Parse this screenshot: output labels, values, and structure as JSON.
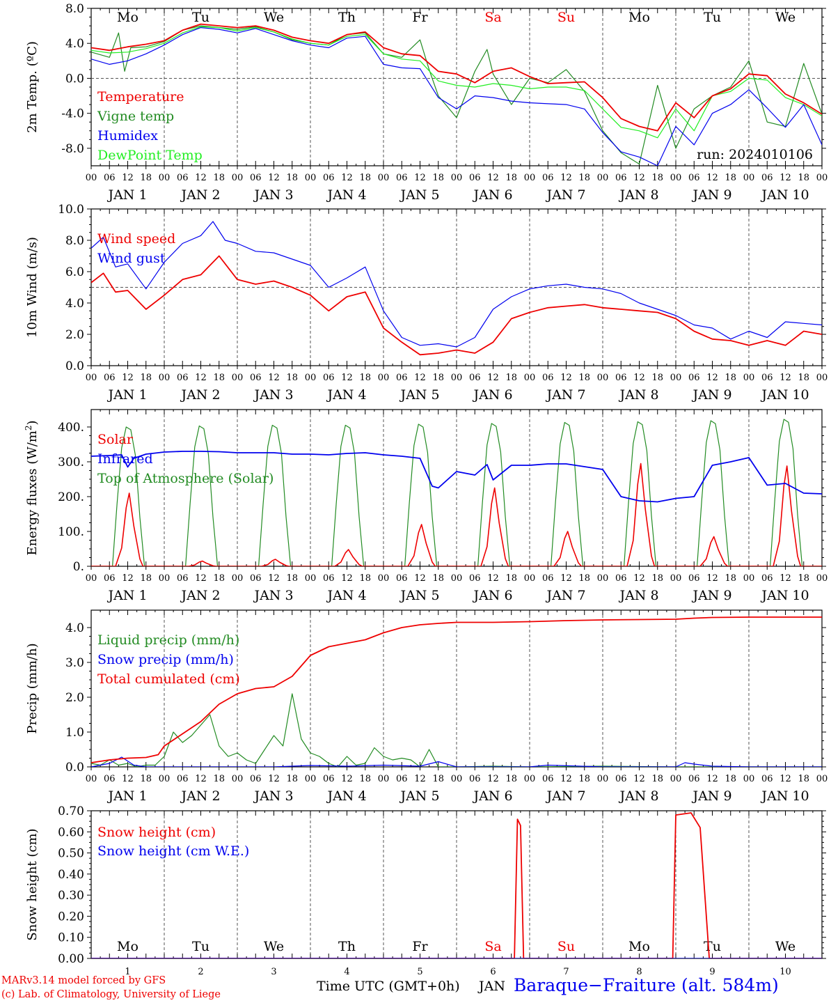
{
  "meta": {
    "run": "run: 2024010106",
    "station": "Baraque−Fraiture (alt. 584m)",
    "credit_line1": "MARv3.14 model forced by GFS",
    "credit_line2": "(c) Lab. of Climatology, University of Liege",
    "time_label": "Time UTC (GMT+0h)",
    "month_label": "JAN"
  },
  "colors": {
    "red": "#ee0000",
    "green": "#228b22",
    "blue": "#0000ee",
    "lightgreen": "#22ee22",
    "weekend": "#ee0000",
    "axis": "#000000"
  },
  "days": {
    "weekdays": [
      "Mo",
      "Tu",
      "We",
      "Th",
      "Fr",
      "Sa",
      "Su",
      "Mo",
      "Tu",
      "We"
    ],
    "weekend_index": [
      5,
      6
    ],
    "dates": [
      "JAN 1",
      "JAN 2",
      "JAN 3",
      "JAN 4",
      "JAN 5",
      "JAN 6",
      "JAN 7",
      "JAN 8",
      "JAN 9",
      "JAN 10"
    ],
    "date_numbers": [
      "1",
      "2",
      "3",
      "4",
      "5",
      "6",
      "7",
      "8",
      "9",
      "10"
    ],
    "hour_ticks": [
      "00",
      "06",
      "12",
      "18"
    ],
    "end_tick": "00"
  },
  "chart_data": [
    {
      "type": "line",
      "ylabel": "2m Temp. (ºC)",
      "ylim": [
        -10,
        8
      ],
      "yticks": [
        -8,
        -4,
        0,
        4,
        8
      ],
      "ytick_labels": [
        "-8.0",
        "-4.0",
        "0.0",
        "4.0",
        "8.0"
      ],
      "ref_line": 0,
      "x_unit": "hours since Jan 1 00 UTC",
      "series": [
        {
          "name": "Temperature",
          "color": "red",
          "x": [
            0,
            6,
            12,
            18,
            24,
            30,
            36,
            42,
            48,
            54,
            60,
            66,
            72,
            78,
            84,
            90,
            96,
            102,
            108,
            114,
            120,
            126,
            132,
            138,
            144,
            150,
            156,
            162,
            168,
            174,
            180,
            186,
            192,
            198,
            204,
            210,
            216,
            222,
            228,
            234,
            240
          ],
          "values": [
            3.5,
            3.2,
            3.6,
            3.9,
            4.3,
            5.5,
            6.2,
            6.0,
            5.8,
            6.0,
            5.5,
            4.7,
            4.3,
            4.0,
            5.0,
            5.3,
            3.5,
            2.8,
            2.6,
            0.8,
            0.5,
            -0.5,
            0.8,
            1.2,
            0.2,
            -0.6,
            -0.5,
            -0.4,
            -2.2,
            -4.6,
            -5.5,
            -6.0,
            -2.8,
            -4.5,
            -2.0,
            -1.2,
            0.5,
            0.3,
            -1.8,
            -2.8,
            -4.1
          ]
        },
        {
          "name": "Vigne temp",
          "color": "green",
          "x": [
            0,
            6,
            9,
            11,
            13,
            18,
            24,
            30,
            36,
            42,
            48,
            54,
            60,
            66,
            72,
            78,
            84,
            90,
            96,
            102,
            108,
            111,
            114,
            120,
            126,
            130,
            132,
            138,
            144,
            150,
            156,
            162,
            168,
            174,
            180,
            186,
            192,
            198,
            204,
            210,
            216,
            222,
            228,
            234,
            240
          ],
          "values": [
            3.0,
            2.4,
            5.2,
            0.8,
            3.5,
            3.6,
            4.2,
            5.5,
            6.0,
            5.8,
            5.6,
            5.9,
            5.3,
            4.4,
            4.0,
            3.8,
            5.0,
            5.2,
            2.8,
            2.4,
            4.4,
            1.0,
            -2.0,
            -4.5,
            0.8,
            3.3,
            0.5,
            -3.0,
            0.0,
            -0.5,
            1.0,
            -1.5,
            -6.0,
            -8.5,
            -9.8,
            -0.8,
            -8.0,
            -3.5,
            -2.0,
            -1.0,
            2.0,
            -5.0,
            -5.5,
            1.7,
            -4.1
          ]
        },
        {
          "name": "Humidex",
          "color": "blue",
          "x": [
            0,
            6,
            12,
            18,
            24,
            30,
            36,
            42,
            48,
            54,
            60,
            66,
            72,
            78,
            84,
            90,
            96,
            102,
            108,
            114,
            120,
            126,
            132,
            138,
            144,
            150,
            156,
            162,
            168,
            174,
            180,
            186,
            192,
            198,
            204,
            210,
            216,
            222,
            228,
            234,
            240
          ],
          "values": [
            2.2,
            1.6,
            2.0,
            2.8,
            3.8,
            5.0,
            5.8,
            5.6,
            5.2,
            5.7,
            5.0,
            4.3,
            3.8,
            3.5,
            4.6,
            4.8,
            1.6,
            1.2,
            1.1,
            -2.2,
            -3.5,
            -2.0,
            -2.2,
            -2.6,
            -2.8,
            -2.9,
            -3.0,
            -3.5,
            -6.2,
            -8.4,
            -9.0,
            -10.0,
            -5.5,
            -7.6,
            -4.0,
            -3.0,
            -1.3,
            -3.4,
            -5.6,
            -3.0,
            -7.6
          ]
        },
        {
          "name": "DewPoint Temp",
          "color": "lightgreen",
          "x": [
            0,
            6,
            12,
            18,
            24,
            30,
            36,
            42,
            48,
            54,
            60,
            66,
            72,
            78,
            84,
            90,
            96,
            102,
            108,
            114,
            120,
            126,
            132,
            138,
            144,
            150,
            156,
            162,
            168,
            174,
            180,
            186,
            192,
            198,
            204,
            210,
            216,
            222,
            228,
            234,
            240
          ],
          "values": [
            3.2,
            2.9,
            3.0,
            3.4,
            4.0,
            5.2,
            5.9,
            5.8,
            5.4,
            5.8,
            5.3,
            4.5,
            4.0,
            3.8,
            4.8,
            5.0,
            2.8,
            2.2,
            2.0,
            -0.3,
            -0.8,
            -1.0,
            -0.6,
            -0.8,
            -1.2,
            -1.0,
            -1.0,
            -1.4,
            -3.5,
            -5.6,
            -6.0,
            -6.8,
            -3.5,
            -6.0,
            -2.0,
            -1.5,
            0.0,
            -0.2,
            -2.2,
            -3.0,
            -4.3
          ]
        }
      ]
    },
    {
      "type": "line",
      "ylabel": "10m Wind (m/s)",
      "ylim": [
        0,
        10
      ],
      "yticks": [
        0,
        2,
        4,
        6,
        8,
        10
      ],
      "ytick_labels": [
        "0.0",
        "2.0",
        "4.0",
        "6.0",
        "8.0",
        "10.0"
      ],
      "ref_line": 5,
      "x_unit": "hours since Jan 1 00 UTC",
      "series": [
        {
          "name": "Wind speed",
          "color": "red",
          "x": [
            0,
            4,
            8,
            12,
            18,
            24,
            30,
            36,
            42,
            48,
            54,
            60,
            66,
            72,
            78,
            84,
            90,
            96,
            102,
            108,
            114,
            120,
            126,
            132,
            138,
            144,
            150,
            156,
            162,
            168,
            174,
            180,
            186,
            192,
            198,
            204,
            210,
            216,
            222,
            228,
            234,
            240
          ],
          "values": [
            5.3,
            5.9,
            4.7,
            4.8,
            3.6,
            4.5,
            5.5,
            5.8,
            7.0,
            5.5,
            5.2,
            5.4,
            5.0,
            4.5,
            3.5,
            4.4,
            4.7,
            2.4,
            1.5,
            0.7,
            0.8,
            1.0,
            0.8,
            1.5,
            3.0,
            3.4,
            3.7,
            3.8,
            3.9,
            3.7,
            3.6,
            3.5,
            3.4,
            3.0,
            2.2,
            1.7,
            1.6,
            1.3,
            1.6,
            1.3,
            2.2,
            2.0
          ]
        },
        {
          "name": "Wind gust",
          "color": "blue",
          "x": [
            0,
            4,
            8,
            12,
            18,
            24,
            30,
            36,
            40,
            44,
            48,
            54,
            60,
            66,
            72,
            78,
            84,
            90,
            96,
            102,
            108,
            114,
            120,
            126,
            132,
            138,
            144,
            150,
            156,
            162,
            168,
            174,
            180,
            186,
            192,
            198,
            204,
            210,
            216,
            222,
            228,
            234,
            240
          ],
          "values": [
            7.5,
            8.2,
            6.3,
            6.5,
            4.9,
            6.6,
            7.8,
            8.3,
            9.2,
            8.0,
            7.8,
            7.3,
            7.2,
            6.8,
            6.4,
            5.0,
            5.6,
            6.3,
            3.5,
            1.8,
            1.3,
            1.4,
            1.2,
            1.8,
            3.6,
            4.4,
            4.9,
            5.1,
            5.2,
            5.0,
            4.9,
            4.6,
            4.0,
            3.6,
            3.2,
            2.6,
            2.4,
            1.7,
            2.2,
            1.8,
            2.8,
            2.7,
            2.6
          ]
        }
      ]
    },
    {
      "type": "line",
      "ylabel": "Energy fluxes (W/m²)",
      "ylim": [
        0,
        450
      ],
      "yticks": [
        0,
        100,
        200,
        300,
        400
      ],
      "ytick_labels": [
        "0.",
        "100.",
        "200.",
        "300.",
        "400."
      ],
      "x_unit": "hours since Jan 1 00 UTC",
      "toa_peaks": [
        400,
        403,
        405,
        405,
        408,
        410,
        413,
        415,
        418,
        422
      ],
      "solar_peaks": [
        210,
        15,
        20,
        48,
        120,
        225,
        100,
        295,
        85,
        288
      ],
      "series": [
        {
          "name": "Solar",
          "color": "red"
        },
        {
          "name": "Infrared",
          "color": "blue",
          "x": [
            0,
            6,
            10,
            12,
            14,
            18,
            24,
            30,
            36,
            42,
            48,
            54,
            60,
            66,
            72,
            78,
            84,
            90,
            96,
            102,
            108,
            112,
            114,
            120,
            126,
            130,
            132,
            138,
            144,
            150,
            156,
            162,
            168,
            174,
            180,
            186,
            192,
            198,
            204,
            210,
            216,
            222,
            228,
            234,
            240
          ],
          "values": [
            316,
            318,
            320,
            285,
            310,
            322,
            328,
            330,
            330,
            329,
            326,
            326,
            326,
            322,
            322,
            320,
            324,
            326,
            320,
            316,
            310,
            230,
            225,
            272,
            262,
            292,
            248,
            290,
            290,
            294,
            294,
            286,
            278,
            200,
            188,
            185,
            195,
            200,
            290,
            300,
            312,
            233,
            238,
            210,
            208
          ]
        },
        {
          "name": "Top of Atmosphere (Solar)",
          "color": "green"
        }
      ]
    },
    {
      "type": "line",
      "ylabel": "Precip (mm/h)",
      "ylim": [
        0,
        4.5
      ],
      "yticks": [
        0,
        1,
        2,
        3,
        4
      ],
      "ytick_labels": [
        "0.0",
        "1.0",
        "2.0",
        "3.0",
        "4.0"
      ],
      "x_unit": "hours since Jan 1 00 UTC",
      "series": [
        {
          "name": "Liquid precip (mm/h)",
          "color": "green",
          "x": [
            0,
            3,
            6,
            9,
            12,
            15,
            18,
            21,
            24,
            27,
            30,
            33,
            36,
            39,
            42,
            45,
            48,
            51,
            54,
            57,
            60,
            63,
            66,
            69,
            72,
            75,
            78,
            81,
            84,
            87,
            90,
            93,
            96,
            99,
            102,
            105,
            108,
            111,
            114,
            120,
            132,
            144,
            168,
            192,
            216,
            240
          ],
          "values": [
            0.1,
            0.05,
            0.2,
            0.05,
            0.1,
            0.0,
            0.05,
            0.05,
            0.3,
            1.0,
            0.7,
            0.9,
            1.2,
            1.5,
            0.6,
            0.3,
            0.4,
            0.2,
            0.1,
            0.5,
            0.9,
            0.6,
            2.1,
            0.8,
            0.4,
            0.3,
            0.1,
            0.0,
            0.3,
            0.05,
            0.1,
            0.55,
            0.3,
            0.2,
            0.25,
            0.2,
            0.0,
            0.5,
            0.0,
            0.0,
            0.02,
            0.0,
            0.02,
            0.0,
            0.0,
            0.0
          ]
        },
        {
          "name": "Snow precip (mm/h)",
          "color": "blue",
          "x": [
            0,
            6,
            10,
            14,
            18,
            24,
            60,
            72,
            84,
            96,
            108,
            114,
            120,
            144,
            150,
            168,
            192,
            195,
            198,
            204,
            216,
            240
          ],
          "values": [
            0.0,
            0.1,
            0.28,
            0.05,
            0.0,
            0.0,
            0.0,
            0.04,
            0.02,
            0.05,
            0.02,
            0.15,
            0.0,
            0.0,
            0.05,
            0.0,
            0.0,
            0.12,
            0.08,
            0.02,
            0.0,
            0.0
          ]
        },
        {
          "name": "Total cumulated (cm)",
          "color": "red",
          "x": [
            0,
            6,
            12,
            18,
            22,
            24,
            30,
            36,
            42,
            48,
            54,
            60,
            66,
            72,
            78,
            84,
            90,
            96,
            102,
            108,
            114,
            120,
            132,
            144,
            156,
            168,
            180,
            192,
            198,
            204,
            216,
            240
          ],
          "values": [
            0.12,
            0.2,
            0.25,
            0.27,
            0.35,
            0.6,
            0.95,
            1.3,
            1.8,
            2.1,
            2.25,
            2.3,
            2.6,
            3.2,
            3.45,
            3.55,
            3.65,
            3.85,
            4.0,
            4.08,
            4.12,
            4.15,
            4.15,
            4.17,
            4.2,
            4.22,
            4.23,
            4.24,
            4.27,
            4.29,
            4.3,
            4.3
          ]
        }
      ]
    },
    {
      "type": "line",
      "ylabel": "Snow height (cm)",
      "ylim": [
        0,
        0.7
      ],
      "yticks": [
        0,
        0.1,
        0.2,
        0.3,
        0.4,
        0.5,
        0.6,
        0.7
      ],
      "ytick_labels": [
        "0.00",
        "0.10",
        "0.20",
        "0.30",
        "0.40",
        "0.50",
        "0.60",
        "0.70"
      ],
      "x_unit": "hours since Jan 1 00 UTC",
      "series": [
        {
          "name": "Snow height (cm)",
          "color": "red",
          "x": [
            0,
            139,
            140,
            141,
            142,
            143,
            191,
            192,
            197,
            200,
            203,
            240
          ],
          "values": [
            0,
            0,
            0.66,
            0.63,
            0,
            0,
            0,
            0.68,
            0.69,
            0.62,
            0,
            0
          ]
        },
        {
          "name": "Snow height (cm W.E.)",
          "color": "blue",
          "x": [
            0,
            240
          ],
          "values": [
            0,
            0
          ]
        }
      ]
    }
  ]
}
